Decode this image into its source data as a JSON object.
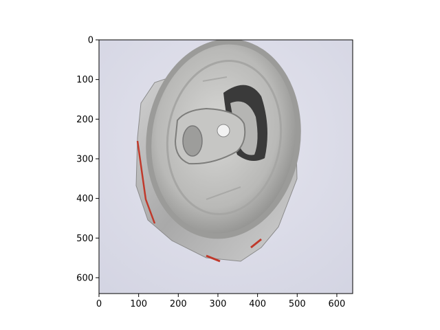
{
  "figure": {
    "image_subject": "crushed aluminum soda can",
    "x_axis": {
      "ticks": [
        0,
        100,
        200,
        300,
        400,
        500,
        600
      ],
      "range": [
        0,
        640
      ]
    },
    "y_axis": {
      "ticks": [
        0,
        100,
        200,
        300,
        400,
        500,
        600
      ],
      "range": [
        0,
        640
      ],
      "inverted": true
    }
  },
  "colors": {
    "background": "#d9dae6",
    "can_body": "#b8b8b8",
    "can_rim": "#9a9a9a",
    "can_lid": "#c8c8c6",
    "label_red": "#c0392b",
    "axis": "#000000"
  }
}
